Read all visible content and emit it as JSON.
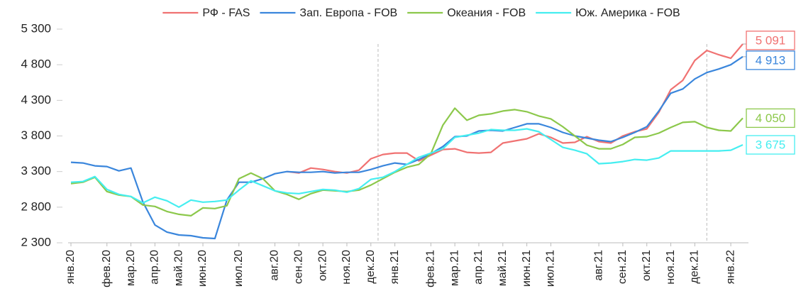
{
  "chart_data": {
    "type": "line",
    "categories": [
      "янв.20",
      null,
      null,
      "фев.20",
      null,
      "мар.20",
      null,
      "апр.20",
      null,
      "май.20",
      null,
      "июн.20",
      null,
      null,
      "июл.20",
      null,
      null,
      "авг.20",
      null,
      "сен.20",
      null,
      "окт.20",
      null,
      "ноя.20",
      null,
      "дек.20",
      null,
      "янв.21",
      null,
      null,
      "фев.21",
      null,
      "мар.21",
      null,
      "апр.21",
      null,
      "май.21",
      null,
      "июн.21",
      null,
      "июл.21",
      null,
      null,
      null,
      "авг.21",
      null,
      "сен.21",
      null,
      "окт.21",
      null,
      "ноя.21",
      null,
      "дек.21",
      null,
      null,
      "янв.22",
      null
    ],
    "series": [
      {
        "name": "РФ - FAS",
        "color": "#f07272",
        "values": [
          null,
          null,
          null,
          null,
          null,
          null,
          null,
          null,
          null,
          null,
          null,
          null,
          null,
          null,
          null,
          null,
          null,
          null,
          3300,
          3280,
          3350,
          3330,
          3300,
          3280,
          3320,
          3480,
          3540,
          3560,
          3560,
          3450,
          3530,
          3610,
          3620,
          3570,
          3560,
          3570,
          3700,
          3730,
          3760,
          3830,
          3780,
          3700,
          3710,
          3790,
          3720,
          3700,
          3800,
          3860,
          3900,
          4130,
          4450,
          4580,
          4860,
          5000,
          4940,
          4890,
          5091
        ],
        "value_labels": [
          null,
          null,
          null,
          null,
          null,
          null,
          null,
          null,
          null,
          null,
          null,
          null,
          null,
          null,
          null,
          null,
          null,
          null,
          null,
          null,
          null,
          null,
          null,
          null,
          null,
          null,
          null,
          null,
          null,
          null,
          null,
          null,
          null,
          null,
          null,
          null,
          null,
          null,
          null,
          null,
          null,
          null,
          null,
          null,
          null,
          null,
          null,
          null,
          null,
          null,
          null,
          null,
          null,
          null,
          null,
          null,
          "5 091"
        ]
      },
      {
        "name": "Зап. Европа - FOB",
        "color": "#3a86dc",
        "values": [
          3430,
          3420,
          3380,
          3370,
          3310,
          3350,
          2870,
          2550,
          2450,
          2410,
          2400,
          2370,
          2360,
          2900,
          3150,
          3150,
          3200,
          3270,
          3300,
          3290,
          3290,
          3300,
          3280,
          3290,
          3290,
          3330,
          3380,
          3420,
          3400,
          3470,
          3550,
          3650,
          3790,
          3800,
          3870,
          3880,
          3870,
          3920,
          3970,
          3970,
          3920,
          3850,
          3800,
          3770,
          3740,
          3720,
          3780,
          3850,
          3930,
          4150,
          4400,
          4460,
          4600,
          4690,
          4740,
          4800,
          4913
        ],
        "value_labels": [
          null,
          null,
          null,
          null,
          null,
          null,
          null,
          null,
          null,
          null,
          null,
          null,
          null,
          null,
          null,
          null,
          null,
          null,
          null,
          null,
          null,
          null,
          null,
          null,
          null,
          null,
          null,
          null,
          null,
          null,
          null,
          null,
          null,
          null,
          null,
          null,
          null,
          null,
          null,
          null,
          null,
          null,
          null,
          null,
          null,
          null,
          null,
          null,
          null,
          null,
          null,
          null,
          null,
          null,
          null,
          null,
          "4 913"
        ]
      },
      {
        "name": "Океания - FOB",
        "color": "#8cc84b",
        "values": [
          3130,
          3150,
          3220,
          3020,
          2970,
          2950,
          2830,
          2810,
          2740,
          2700,
          2680,
          2790,
          2780,
          2820,
          3200,
          3280,
          3200,
          3030,
          2980,
          2910,
          2990,
          3040,
          3030,
          3020,
          3040,
          3110,
          3200,
          3290,
          3360,
          3400,
          3550,
          3950,
          4190,
          4020,
          4090,
          4110,
          4150,
          4170,
          4140,
          4080,
          4040,
          3930,
          3800,
          3670,
          3620,
          3620,
          3680,
          3780,
          3790,
          3840,
          3920,
          3990,
          4000,
          3920,
          3880,
          3870,
          4050
        ],
        "value_labels": [
          null,
          null,
          null,
          null,
          null,
          null,
          null,
          null,
          null,
          null,
          null,
          null,
          null,
          null,
          null,
          null,
          null,
          null,
          null,
          null,
          null,
          null,
          null,
          null,
          null,
          null,
          null,
          null,
          null,
          null,
          null,
          null,
          null,
          null,
          null,
          null,
          null,
          null,
          null,
          null,
          null,
          null,
          null,
          null,
          null,
          null,
          null,
          null,
          null,
          null,
          null,
          null,
          null,
          null,
          null,
          null,
          "4 050"
        ]
      },
      {
        "name": "Юж. Америка - FOB",
        "color": "#45eef0",
        "values": [
          3150,
          3160,
          3230,
          3050,
          2980,
          2950,
          2860,
          2940,
          2890,
          2800,
          2900,
          2870,
          2880,
          2900,
          3040,
          3170,
          3100,
          3030,
          3000,
          2990,
          3020,
          3050,
          3040,
          3010,
          3060,
          3190,
          3220,
          3300,
          3400,
          3500,
          3560,
          3620,
          3780,
          3810,
          3840,
          3890,
          3880,
          3880,
          3900,
          3860,
          3750,
          3640,
          3600,
          3550,
          3410,
          3420,
          3440,
          3470,
          3460,
          3490,
          3590,
          3590,
          3590,
          3590,
          3590,
          3600,
          3675
        ],
        "value_labels": [
          null,
          null,
          null,
          null,
          null,
          null,
          null,
          null,
          null,
          null,
          null,
          null,
          null,
          null,
          null,
          null,
          null,
          null,
          null,
          null,
          null,
          null,
          null,
          null,
          null,
          null,
          null,
          null,
          null,
          null,
          null,
          null,
          null,
          null,
          null,
          null,
          null,
          null,
          null,
          null,
          null,
          null,
          null,
          null,
          null,
          null,
          null,
          null,
          null,
          null,
          null,
          null,
          null,
          null,
          null,
          null,
          "3 675"
        ]
      }
    ],
    "ylim": [
      2300,
      5300
    ],
    "yticks": [
      {
        "value": 2300,
        "label": "2 300"
      },
      {
        "value": 2800,
        "label": "2 800"
      },
      {
        "value": 3300,
        "label": "3 300"
      },
      {
        "value": 3800,
        "label": "3 800"
      },
      {
        "value": 4300,
        "label": "4 300"
      },
      {
        "value": 4800,
        "label": "4 800"
      },
      {
        "value": 5300,
        "label": "5 300"
      }
    ],
    "grid": false,
    "legend": "top"
  }
}
